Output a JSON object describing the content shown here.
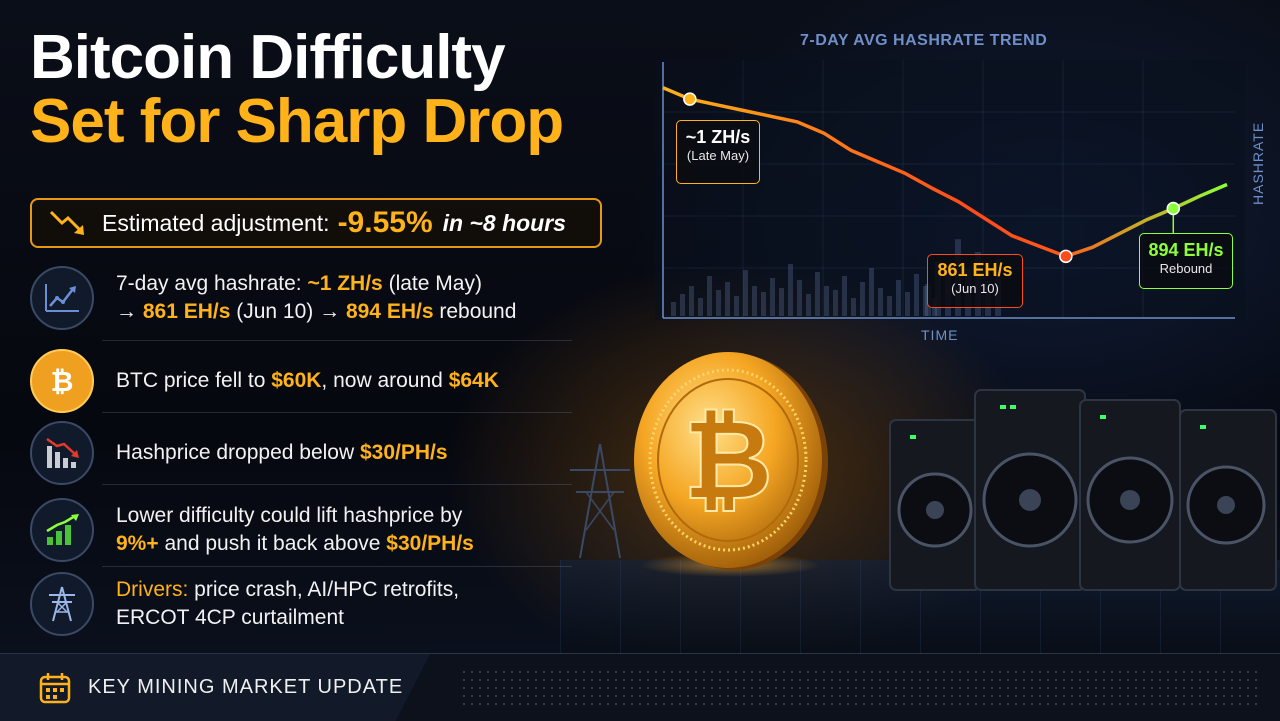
{
  "headline": {
    "line1": "Bitcoin Difficulty",
    "line2": "Set for Sharp Drop"
  },
  "estimate": {
    "label": "Estimated adjustment:",
    "value": "-9.55%",
    "timing": "in ~8 hours",
    "icon": "trend-down-icon"
  },
  "facts": [
    {
      "icon": "hashrate-chart-icon",
      "line1_pre": "7-day avg hashrate: ",
      "line1_hl": "~1 ZH/s",
      "line1_post": " (late May)",
      "line2_a": "→ ",
      "line2_hl1": "861 EH/s",
      "line2_b": " (Jun 10) → ",
      "line2_hl2": "894 EH/s",
      "line2_c": " rebound"
    },
    {
      "icon": "bitcoin-icon",
      "pre": "BTC price fell to ",
      "hl1": "$60K",
      "mid": ", now around ",
      "hl2": "$64K"
    },
    {
      "icon": "declining-bars-icon",
      "pre": "Hashprice dropped below ",
      "hl": "$30/PH/s"
    },
    {
      "icon": "rising-bars-icon",
      "line1": "Lower difficulty could lift hashprice by",
      "hl1": "9%+",
      "mid": " and push it back above ",
      "hl2": "$30/PH/s"
    },
    {
      "icon": "power-tower-icon",
      "hl": "Drivers:",
      "line1": " price crash, AI/HPC retrofits,",
      "line2": "ERCOT 4CP curtailment"
    }
  ],
  "chart_data": {
    "type": "line",
    "title": "7-DAY AVG HASHRATE TREND",
    "xlabel": "TIME",
    "ylabel": "HASHRATE",
    "annotations": [
      {
        "value": "~1 ZH/s",
        "label": "(Late May)"
      },
      {
        "value": "861 EH/s",
        "label": "(Jun 10)"
      },
      {
        "value": "894 EH/s",
        "label": "Rebound"
      }
    ],
    "y": [
      1000,
      990,
      985,
      980,
      975,
      970,
      960,
      945,
      935,
      925,
      912,
      900,
      885,
      870,
      861,
      852,
      860,
      872,
      884,
      894,
      905,
      915
    ],
    "colors": {
      "start": "#ffb21a",
      "mid": "#ff4a1a",
      "end": "#8dff3a"
    }
  },
  "footer": {
    "label": "KEY MINING MARKET UPDATE",
    "icon": "calendar-icon"
  },
  "colors": {
    "accent": "#ffb21a",
    "background": "#070a12",
    "chart_axis": "#6f8fc8"
  }
}
